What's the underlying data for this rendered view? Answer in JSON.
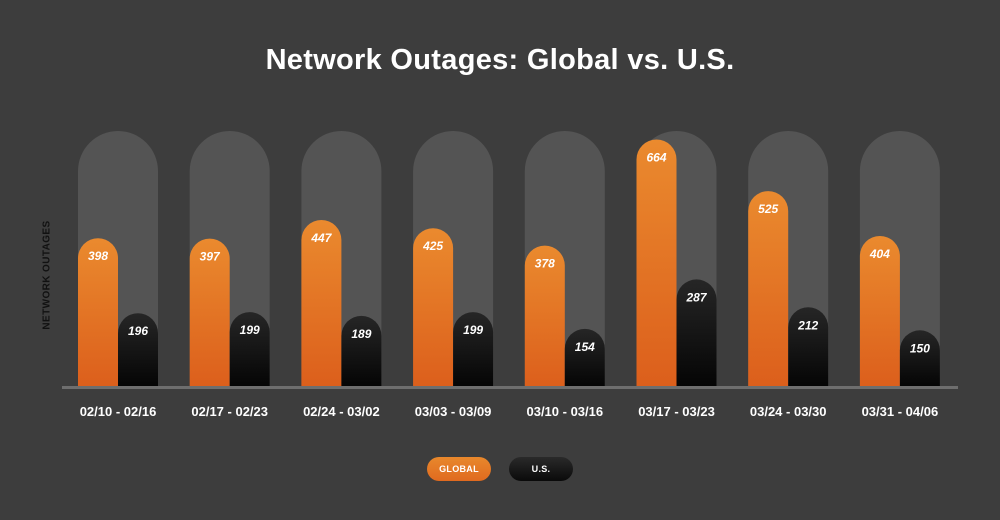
{
  "chart_data": {
    "type": "bar",
    "title": "Network Outages: Global vs. U.S.",
    "xlabel": "",
    "ylabel": "NETWORK OUTAGES",
    "ylim": [
      0,
      700
    ],
    "grid": false,
    "legend_position": "bottom-center",
    "categories": [
      "02/10 - 02/16",
      "02/17 - 02/23",
      "02/24 - 03/02",
      "03/03 - 03/09",
      "03/10 - 03/16",
      "03/17 - 03/23",
      "03/24 - 03/30",
      "03/31 - 04/06"
    ],
    "series": [
      {
        "name": "GLOBAL",
        "values": [
          398,
          397,
          447,
          425,
          378,
          664,
          525,
          404
        ],
        "color": "#e5782a"
      },
      {
        "name": "U.S.",
        "values": [
          196,
          199,
          189,
          199,
          154,
          287,
          212,
          150
        ],
        "color": "#111111"
      }
    ]
  },
  "colors": {
    "background": "#3d3d3d",
    "track": "#545454",
    "baseline": "#6e6e6e",
    "global_top": "#ea8a2e",
    "global_bottom": "#dc5f1c",
    "us_top": "#262626",
    "us_bottom": "#050505"
  }
}
